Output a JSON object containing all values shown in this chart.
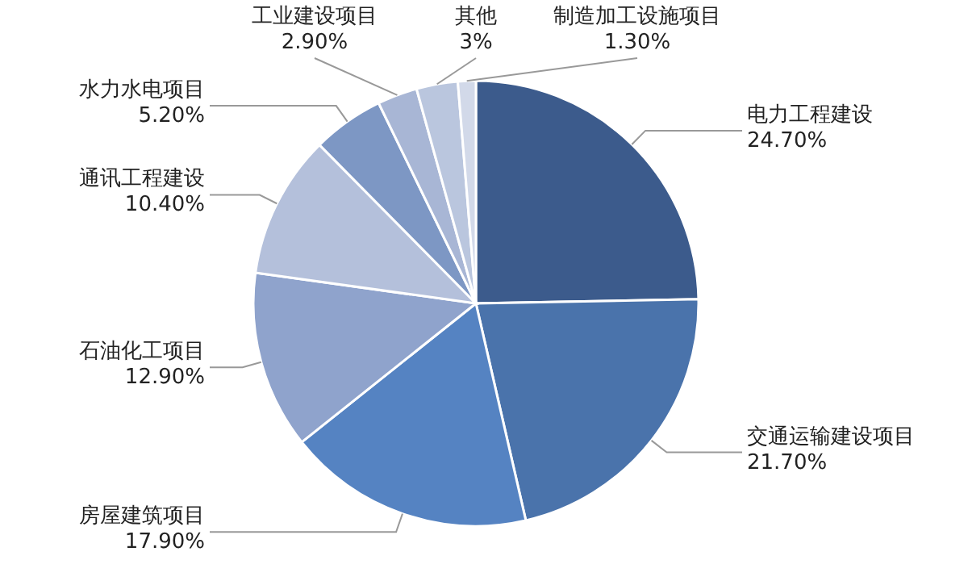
{
  "chart_data": {
    "type": "pie",
    "categories": [
      "电力工程建设",
      "交通运输建设项目",
      "房屋建筑项目",
      "石油化工项目",
      "通讯工程建设",
      "水力水电项目",
      "工业建设项目",
      "其他",
      "制造加工设施项目"
    ],
    "values": [
      24.7,
      21.7,
      17.9,
      12.9,
      10.4,
      5.2,
      2.9,
      3,
      1.3
    ],
    "value_labels": [
      "24.70%",
      "21.70%",
      "17.90%",
      "12.90%",
      "10.40%",
      "5.20%",
      "2.90%",
      "3%",
      "1.30%"
    ],
    "colors": [
      "#3c5b8c",
      "#4a73ab",
      "#5583c2",
      "#8fa3cc",
      "#b4c0db",
      "#7d97c4",
      "#a8b6d5",
      "#bac6de",
      "#d2d9e9"
    ]
  }
}
